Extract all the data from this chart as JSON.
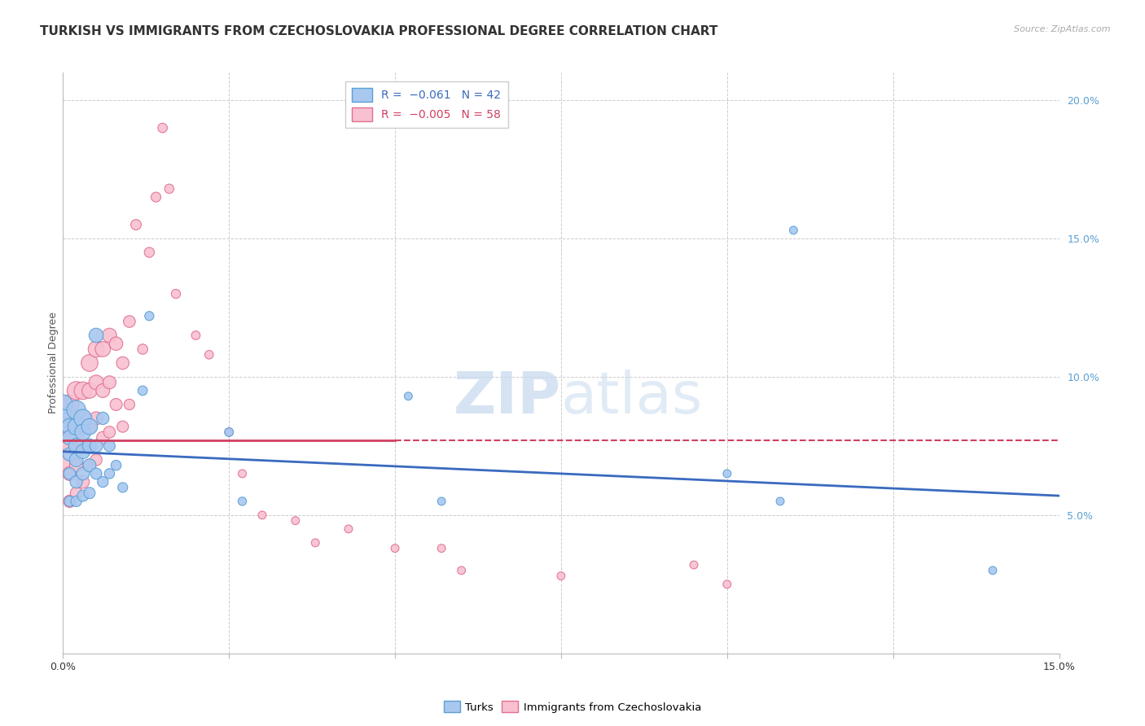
{
  "title": "TURKISH VS IMMIGRANTS FROM CZECHOSLOVAKIA PROFESSIONAL DEGREE CORRELATION CHART",
  "source": "Source: ZipAtlas.com",
  "ylabel": "Professional Degree",
  "xlim": [
    0.0,
    0.15
  ],
  "ylim": [
    0.0,
    0.21
  ],
  "xticks": [
    0.0,
    0.025,
    0.05,
    0.075,
    0.1,
    0.125,
    0.15
  ],
  "yticks_right": [
    0.0,
    0.05,
    0.1,
    0.15,
    0.2
  ],
  "turks_color": "#a8c8f0",
  "turks_edge_color": "#5a9fd4",
  "czecho_color": "#f8c0d0",
  "czecho_edge_color": "#e07090",
  "trend_turks_color": "#3a6abf",
  "trend_czecho_color": "#d04060",
  "grid_color": "#cccccc",
  "background_color": "#ffffff",
  "title_fontsize": 11,
  "axis_fontsize": 9,
  "turks_x": [
    0.0,
    0.0,
    0.001,
    0.001,
    0.001,
    0.001,
    0.001,
    0.002,
    0.002,
    0.002,
    0.002,
    0.002,
    0.002,
    0.003,
    0.003,
    0.003,
    0.003,
    0.003,
    0.004,
    0.004,
    0.004,
    0.004,
    0.005,
    0.005,
    0.005,
    0.006,
    0.006,
    0.007,
    0.007,
    0.008,
    0.009,
    0.012,
    0.013,
    0.025,
    0.027,
    0.052,
    0.057,
    0.1,
    0.108,
    0.11,
    0.14
  ],
  "turks_y": [
    0.09,
    0.085,
    0.082,
    0.078,
    0.072,
    0.065,
    0.055,
    0.088,
    0.082,
    0.075,
    0.07,
    0.062,
    0.055,
    0.085,
    0.08,
    0.073,
    0.065,
    0.057,
    0.082,
    0.075,
    0.068,
    0.058,
    0.115,
    0.075,
    0.065,
    0.085,
    0.062,
    0.075,
    0.065,
    0.068,
    0.06,
    0.095,
    0.122,
    0.08,
    0.055,
    0.093,
    0.055,
    0.065,
    0.055,
    0.153,
    0.03
  ],
  "turks_sizes": [
    300,
    250,
    200,
    170,
    140,
    110,
    85,
    280,
    220,
    180,
    150,
    120,
    90,
    250,
    200,
    160,
    130,
    100,
    200,
    160,
    130,
    100,
    160,
    130,
    100,
    120,
    90,
    100,
    80,
    80,
    75,
    70,
    65,
    60,
    55,
    50,
    50,
    50,
    50,
    50,
    50
  ],
  "czecho_x": [
    0.0,
    0.0,
    0.0,
    0.001,
    0.001,
    0.001,
    0.001,
    0.001,
    0.002,
    0.002,
    0.002,
    0.002,
    0.002,
    0.003,
    0.003,
    0.003,
    0.003,
    0.004,
    0.004,
    0.004,
    0.004,
    0.005,
    0.005,
    0.005,
    0.005,
    0.006,
    0.006,
    0.006,
    0.007,
    0.007,
    0.007,
    0.008,
    0.008,
    0.009,
    0.009,
    0.01,
    0.01,
    0.011,
    0.012,
    0.013,
    0.014,
    0.015,
    0.016,
    0.017,
    0.02,
    0.022,
    0.025,
    0.027,
    0.03,
    0.035,
    0.038,
    0.043,
    0.05,
    0.057,
    0.06,
    0.075,
    0.095,
    0.1
  ],
  "czecho_y": [
    0.082,
    0.075,
    0.068,
    0.09,
    0.082,
    0.075,
    0.065,
    0.055,
    0.095,
    0.085,
    0.078,
    0.068,
    0.058,
    0.095,
    0.085,
    0.075,
    0.062,
    0.105,
    0.095,
    0.082,
    0.068,
    0.11,
    0.098,
    0.085,
    0.07,
    0.11,
    0.095,
    0.078,
    0.115,
    0.098,
    0.08,
    0.112,
    0.09,
    0.105,
    0.082,
    0.12,
    0.09,
    0.155,
    0.11,
    0.145,
    0.165,
    0.19,
    0.168,
    0.13,
    0.115,
    0.108,
    0.08,
    0.065,
    0.05,
    0.048,
    0.04,
    0.045,
    0.038,
    0.038,
    0.03,
    0.028,
    0.032,
    0.025
  ],
  "czecho_sizes": [
    300,
    250,
    200,
    280,
    230,
    190,
    150,
    120,
    260,
    210,
    175,
    140,
    110,
    240,
    195,
    160,
    128,
    220,
    180,
    148,
    118,
    200,
    165,
    135,
    108,
    180,
    148,
    120,
    160,
    132,
    108,
    140,
    115,
    125,
    102,
    110,
    90,
    85,
    80,
    78,
    75,
    70,
    68,
    65,
    60,
    58,
    55,
    52,
    50,
    50,
    50,
    50,
    50,
    50,
    50,
    50,
    50,
    50
  ],
  "trend_turks_x0": 0.0,
  "trend_turks_y0": 0.073,
  "trend_turks_x1": 0.15,
  "trend_turks_y1": 0.057,
  "trend_czecho_solid_x0": 0.0,
  "trend_czecho_solid_y0": 0.077,
  "trend_czecho_solid_x1": 0.05,
  "trend_czecho_solid_y1": 0.077,
  "trend_czecho_dash_x0": 0.05,
  "trend_czecho_dash_y0": 0.077,
  "trend_czecho_dash_x1": 0.15,
  "trend_czecho_dash_y1": 0.077
}
